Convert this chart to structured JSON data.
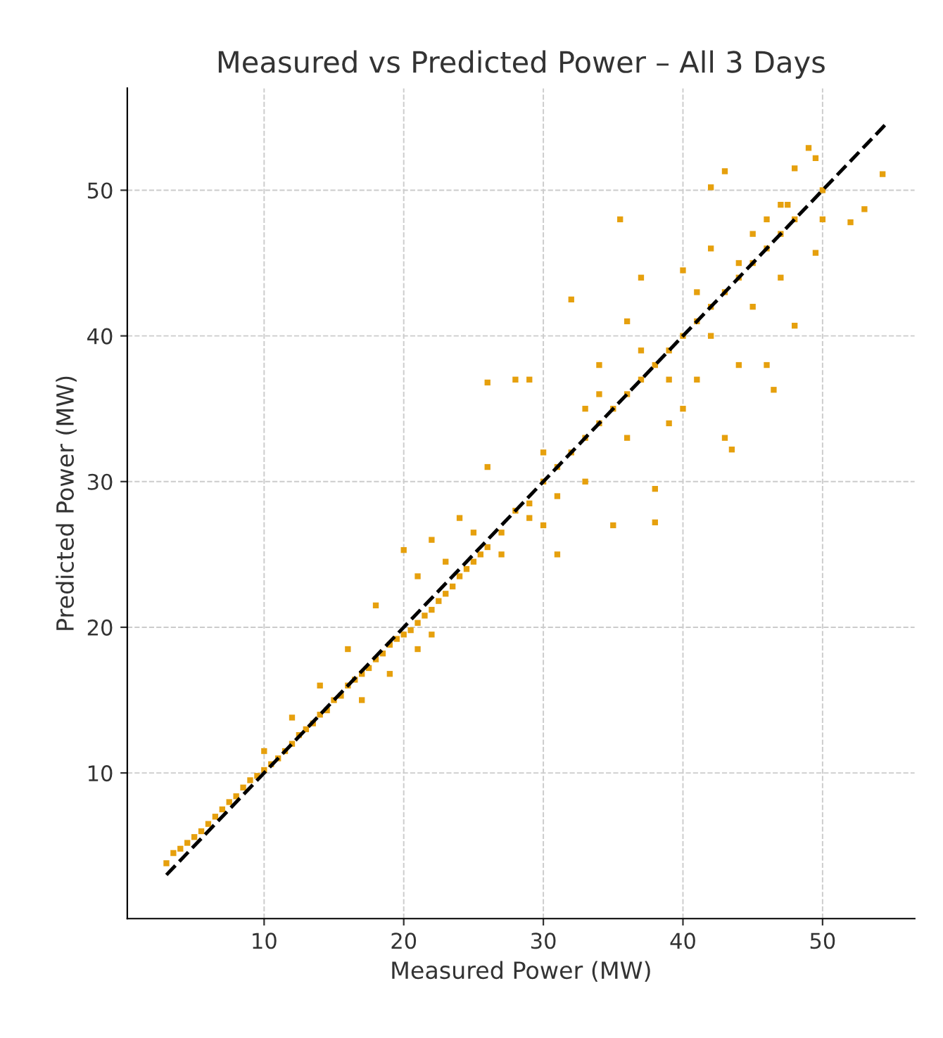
{
  "chart_data": {
    "type": "scatter",
    "title": "Measured vs Predicted Power – All 3 Days",
    "xlabel": "Measured Power (MW)",
    "ylabel": "Predicted Power (MW)",
    "xlim": [
      0.2,
      56.6
    ],
    "ylim": [
      0,
      57
    ],
    "xticks": [
      10,
      20,
      30,
      40,
      50
    ],
    "yticks": [
      10,
      20,
      30,
      40,
      50
    ],
    "grid": true,
    "series": [
      {
        "marker": "square",
        "color": "#e6a00d",
        "x": [
          3,
          3.5,
          4,
          4.5,
          5,
          5.5,
          6,
          6.5,
          7,
          7.5,
          8,
          8.5,
          9,
          9.5,
          10,
          10.5,
          11,
          11.5,
          12,
          12.5,
          13,
          13.5,
          14,
          14.5,
          15,
          15.5,
          16,
          16.5,
          17,
          17.5,
          18,
          18.5,
          19,
          19.5,
          20,
          20.5,
          21,
          21.5,
          22,
          22.5,
          23,
          23.5,
          24,
          24.5,
          25,
          25.5,
          26,
          27,
          28,
          29,
          30,
          31,
          32,
          33,
          34,
          35,
          36,
          37,
          38,
          39,
          40,
          41,
          42,
          43,
          44,
          45,
          46,
          47,
          48,
          10,
          12,
          14,
          16,
          17,
          18,
          19,
          20,
          21,
          22,
          24,
          26,
          26,
          28,
          29,
          29,
          30,
          30,
          31,
          32,
          33,
          33,
          34,
          35,
          35.5,
          36,
          36,
          37,
          38,
          38,
          39,
          40,
          40,
          41,
          41,
          42,
          42,
          42,
          43,
          43,
          43.5,
          44,
          45,
          45,
          46,
          46,
          46.5,
          47,
          47,
          48,
          48,
          49,
          49.5,
          49.5,
          50,
          50,
          52,
          53,
          54.3,
          47.5,
          44,
          39,
          37,
          34,
          31,
          27,
          25,
          23,
          22,
          21
        ],
        "values": [
          3.8,
          4.5,
          4.8,
          5.2,
          5.6,
          6,
          6.5,
          7,
          7.5,
          8,
          8.4,
          9,
          9.5,
          9.8,
          10.2,
          10.6,
          11,
          11.5,
          12,
          12.6,
          13,
          13.4,
          14,
          14.3,
          15,
          15.3,
          16,
          16.4,
          16.8,
          17.2,
          17.8,
          18.2,
          18.8,
          19.2,
          19.5,
          19.8,
          20.3,
          20.8,
          21.2,
          21.8,
          22.3,
          22.8,
          23.5,
          24,
          24.5,
          25,
          25.5,
          26.5,
          28,
          28.5,
          30,
          31,
          32,
          33,
          34,
          35,
          36,
          37,
          38,
          39,
          40,
          41,
          42,
          43,
          44,
          45,
          46,
          47,
          48,
          11.5,
          13.8,
          16,
          18.5,
          15,
          21.5,
          16.8,
          25.3,
          23.5,
          26,
          27.5,
          36.8,
          31,
          37,
          37,
          27.5,
          32,
          27,
          25,
          42.5,
          35,
          30,
          38,
          27,
          48,
          41,
          33,
          44,
          29.5,
          27.2,
          34,
          44.5,
          35,
          43,
          37,
          50.2,
          46,
          40,
          51.3,
          33,
          32.2,
          38,
          47,
          42,
          48,
          38,
          36.3,
          44,
          49,
          51.5,
          40.7,
          52.9,
          52.2,
          45.7,
          50,
          48,
          47.8,
          48.7,
          51.1,
          49,
          45,
          37,
          39,
          36,
          29,
          25,
          26.5,
          24.5,
          19.5,
          18.5
        ]
      },
      {
        "type": "line",
        "color": "#000000",
        "line_style": "dashed",
        "x": [
          3,
          54.5
        ],
        "values": [
          3,
          54.5
        ]
      }
    ]
  }
}
